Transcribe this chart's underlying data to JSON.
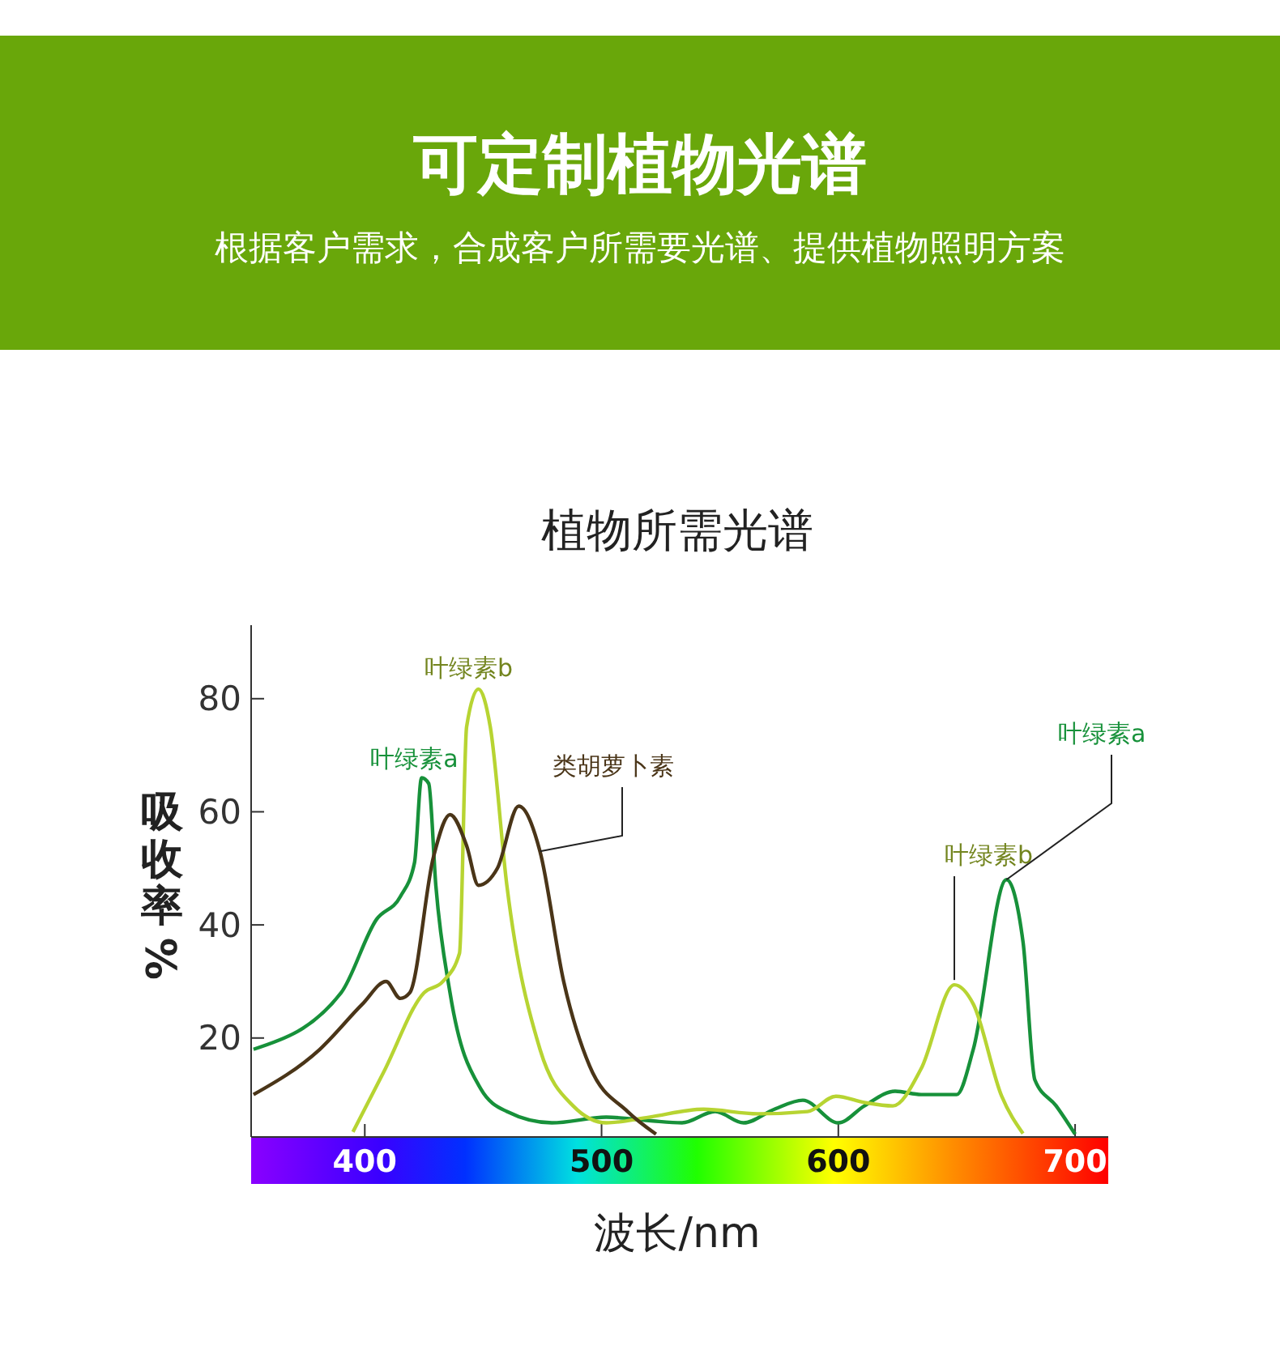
{
  "chart_data": {
    "type": "line",
    "title": "植物所需光谱",
    "xlabel": "波长/nm",
    "ylabel": "吸收率%",
    "annotations": [
      "可定制植物光谱",
      "根据客户需求，合成客户所需要光谱、提供植物照明方案"
    ],
    "xlim": [
      352,
      714
    ],
    "ylim": [
      2.5,
      93
    ],
    "xticks": [
      400,
      500,
      600,
      700
    ],
    "yticks": [
      20,
      40,
      60,
      80
    ],
    "grid": false,
    "series": [
      {
        "name": "叶绿素a",
        "color": "#17913a",
        "x": [
          353,
          390,
          405,
          415,
          421,
          424,
          427,
          430,
          436,
          449,
          460,
          479,
          502,
          520,
          534,
          548,
          560,
          573,
          585,
          600,
          611,
          624,
          635,
          650,
          657,
          671,
          678,
          683,
          692,
          700
        ],
        "values": [
          18,
          28,
          41,
          45,
          51,
          66,
          65,
          47,
          28,
          11,
          7,
          5,
          6,
          5.4,
          5,
          7,
          5,
          7.4,
          9,
          5,
          8,
          10.6,
          10,
          10,
          18,
          48,
          37,
          12.6,
          8,
          3
        ]
      },
      {
        "name": "叶绿素b",
        "color": "#b7d432",
        "x": [
          395,
          408,
          425,
          433,
          440,
          443,
          448,
          453,
          460,
          474,
          488,
          502,
          520,
          543,
          566,
          587,
          599,
          611,
          623,
          635,
          649,
          657,
          669,
          678
        ],
        "values": [
          3.4,
          14,
          28,
          30,
          35,
          75,
          81.7,
          75,
          47,
          18,
          8,
          5,
          6,
          7.4,
          6.6,
          7,
          9.7,
          8.6,
          8,
          14.6,
          29.4,
          26,
          9.7,
          3.1
        ]
      },
      {
        "name": "类胡萝卜素",
        "color": "#4a3518",
        "x": [
          353,
          381,
          399,
          409,
          415,
          419,
          429,
          436,
          443,
          448,
          456,
          465,
          474,
          484,
          495,
          511,
          523
        ],
        "values": [
          10,
          18,
          26,
          30,
          27,
          28,
          52,
          59.5,
          54,
          47,
          50,
          61,
          53,
          30,
          15,
          7,
          3
        ]
      }
    ]
  }
}
